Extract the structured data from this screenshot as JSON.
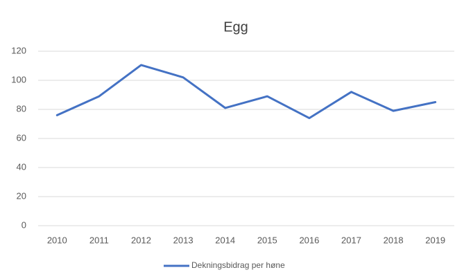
{
  "chart_data": {
    "type": "line",
    "title": "Egg",
    "categories": [
      "2010",
      "2011",
      "2012",
      "2013",
      "2014",
      "2015",
      "2016",
      "2017",
      "2018",
      "2019"
    ],
    "series": [
      {
        "name": "Dekningsbidrag per høne",
        "color": "#4472c4",
        "values": [
          76,
          89,
          110.5,
          102,
          81,
          89,
          74,
          92,
          79,
          85
        ]
      }
    ],
    "ylim": [
      0,
      120
    ],
    "yticks": [
      0,
      20,
      40,
      60,
      80,
      100,
      120
    ],
    "grid": true,
    "legend": "bottom"
  }
}
